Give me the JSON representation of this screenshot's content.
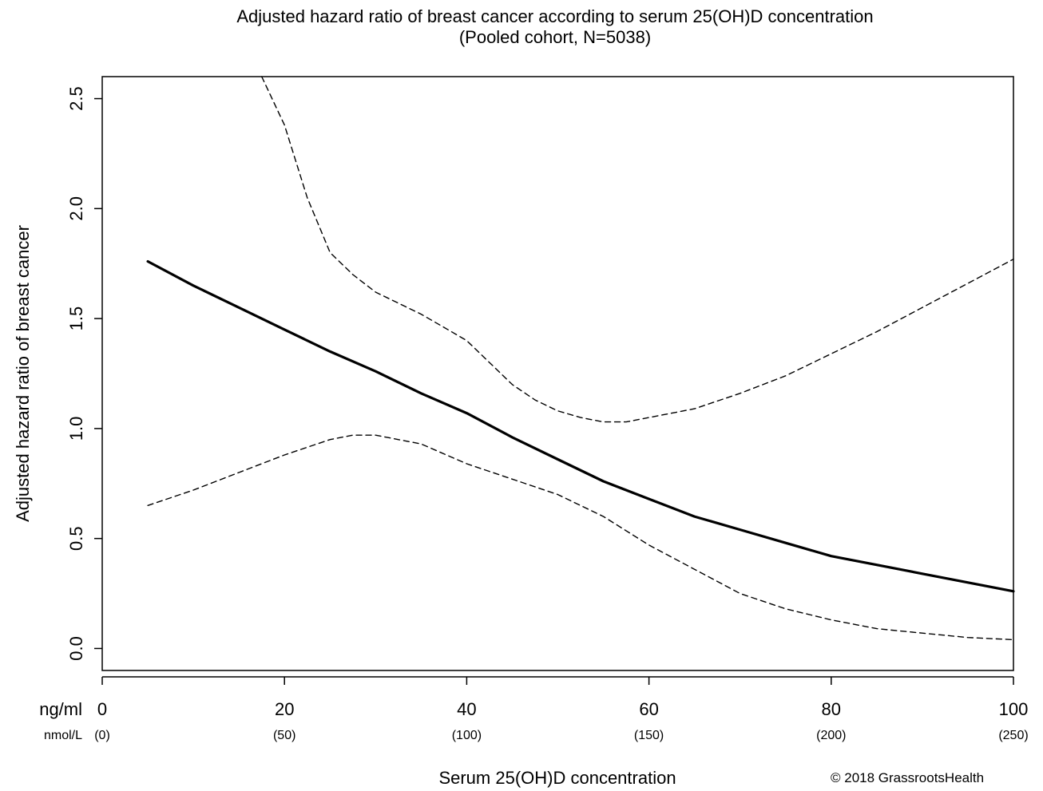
{
  "chart_data": {
    "type": "line",
    "title": "Adjusted hazard ratio of breast cancer according to serum 25(OH)D concentration",
    "subtitle": "(Pooled cohort, N=5038)",
    "xlabel": "Serum 25(OH)D concentration",
    "ylabel": "Adjusted hazard ratio of breast cancer",
    "xlim": [
      0,
      100
    ],
    "ylim": [
      -0.1,
      2.6
    ],
    "y_ticks": [
      "0.0",
      "0.5",
      "1.0",
      "1.5",
      "2.0",
      "2.5"
    ],
    "x_ticks": [
      "0",
      "20",
      "40",
      "60",
      "80",
      "100"
    ],
    "x_ticks_secondary": [
      "(0)",
      "(50)",
      "(100)",
      "(150)",
      "(200)",
      "(250)"
    ],
    "x_unit_primary": "ng/ml",
    "x_unit_secondary": "nmol/L",
    "grid": false,
    "series": [
      {
        "style": "solid",
        "points": [
          [
            5,
            1.76
          ],
          [
            10,
            1.65
          ],
          [
            15,
            1.55
          ],
          [
            20,
            1.45
          ],
          [
            25,
            1.35
          ],
          [
            30,
            1.26
          ],
          [
            35,
            1.16
          ],
          [
            40,
            1.07
          ],
          [
            45,
            0.96
          ],
          [
            50,
            0.86
          ],
          [
            55,
            0.76
          ],
          [
            60,
            0.68
          ],
          [
            65,
            0.6
          ],
          [
            70,
            0.54
          ],
          [
            75,
            0.48
          ],
          [
            80,
            0.42
          ],
          [
            85,
            0.38
          ],
          [
            90,
            0.34
          ],
          [
            95,
            0.3
          ],
          [
            100,
            0.26
          ]
        ]
      },
      {
        "style": "dashed",
        "points": [
          [
            17.5,
            2.6
          ],
          [
            20,
            2.38
          ],
          [
            22.5,
            2.05
          ],
          [
            25,
            1.8
          ],
          [
            27.5,
            1.7
          ],
          [
            30,
            1.62
          ],
          [
            32.5,
            1.57
          ],
          [
            35,
            1.52
          ],
          [
            37.5,
            1.46
          ],
          [
            40,
            1.4
          ],
          [
            42.5,
            1.3
          ],
          [
            45,
            1.2
          ],
          [
            47.5,
            1.13
          ],
          [
            50,
            1.08
          ],
          [
            52.5,
            1.05
          ],
          [
            55,
            1.03
          ],
          [
            57.5,
            1.03
          ],
          [
            60,
            1.05
          ],
          [
            65,
            1.09
          ],
          [
            70,
            1.16
          ],
          [
            75,
            1.24
          ],
          [
            80,
            1.34
          ],
          [
            85,
            1.44
          ],
          [
            90,
            1.55
          ],
          [
            95,
            1.66
          ],
          [
            100,
            1.77
          ]
        ]
      },
      {
        "style": "dashed",
        "points": [
          [
            5,
            0.65
          ],
          [
            10,
            0.72
          ],
          [
            15,
            0.8
          ],
          [
            20,
            0.88
          ],
          [
            25,
            0.95
          ],
          [
            27.5,
            0.97
          ],
          [
            30,
            0.97
          ],
          [
            35,
            0.93
          ],
          [
            40,
            0.84
          ],
          [
            45,
            0.77
          ],
          [
            50,
            0.7
          ],
          [
            55,
            0.6
          ],
          [
            60,
            0.47
          ],
          [
            65,
            0.36
          ],
          [
            70,
            0.25
          ],
          [
            75,
            0.18
          ],
          [
            80,
            0.13
          ],
          [
            85,
            0.09
          ],
          [
            90,
            0.07
          ],
          [
            95,
            0.05
          ],
          [
            100,
            0.04
          ]
        ]
      }
    ]
  },
  "credit": "© 2018 GrassrootsHealth"
}
